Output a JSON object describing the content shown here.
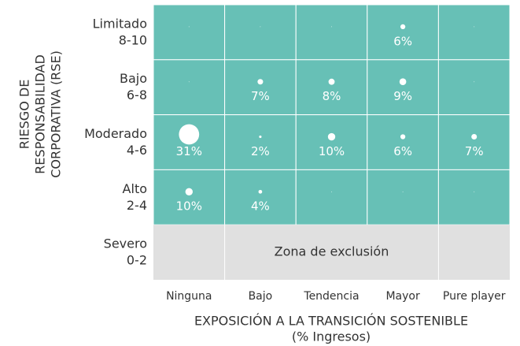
{
  "chart_data": {
    "type": "bubble-matrix",
    "x_title": "EXPOSICIÓN A LA TRANSICIÓN SOSTENIBLE",
    "x_subtitle": "(% Ingresos)",
    "y_title": [
      "RIESGO DE",
      "RESPONSABILIDAD",
      "CORPORATIVA (RSE)"
    ],
    "categories": [
      "Ninguna",
      "Bajo",
      "Tendencia",
      "Mayor",
      "Pure player"
    ],
    "color": "#67c0b6",
    "bubble_color": "#ffffff",
    "exclusion_color": "#e0e0e0",
    "rows": [
      {
        "label": [
          "Limitado",
          "8-10"
        ],
        "values": [
          null,
          null,
          null,
          6,
          null
        ],
        "value_labels": [
          null,
          null,
          null,
          "6%",
          null
        ]
      },
      {
        "label": [
          "Bajo",
          "6-8"
        ],
        "values": [
          null,
          7,
          8,
          9,
          null
        ],
        "value_labels": [
          null,
          "7%",
          "8%",
          "9%",
          null
        ]
      },
      {
        "label": [
          "Moderado",
          "4-6"
        ],
        "values": [
          31,
          2,
          10,
          6,
          7
        ],
        "value_labels": [
          "31%",
          "2%",
          "10%",
          "6%",
          "7%"
        ]
      },
      {
        "label": [
          "Alto",
          "2-4"
        ],
        "values": [
          10,
          4,
          null,
          null,
          null
        ],
        "value_labels": [
          "10%",
          "4%",
          null,
          null,
          null
        ]
      },
      {
        "label": [
          "Severo",
          "0-2"
        ],
        "excluded": true,
        "annotation": "Zona de exclusión"
      }
    ]
  }
}
